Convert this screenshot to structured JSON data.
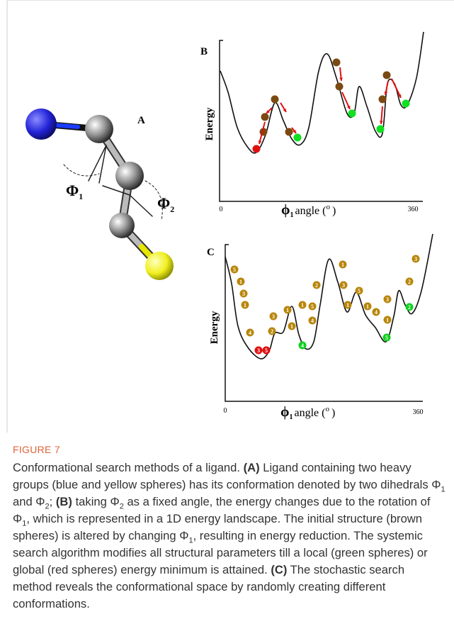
{
  "figure": {
    "panel_a": {
      "label": "A",
      "phi1": [
        "Φ",
        "1"
      ],
      "phi2": [
        "Φ",
        "2"
      ]
    },
    "panel_b": {
      "label": "B",
      "y_label": "Energy",
      "x_label": [
        "ϕ",
        "1",
        "angle (",
        "o",
        ")"
      ],
      "x_start": "0",
      "x_end": "360"
    },
    "panel_c": {
      "label": "C",
      "y_label": "Energy",
      "x_label": [
        "ϕ",
        "1",
        "angle (",
        "o",
        ")"
      ],
      "x_start": "0",
      "x_end": "360",
      "sphere_labels": [
        "5",
        "1",
        "3",
        "1",
        "4",
        "3",
        "5",
        "2",
        "3",
        "1",
        "1",
        "1",
        "5",
        "4",
        "4",
        "2",
        "1",
        "3",
        "1",
        "5",
        "1",
        "4",
        "3",
        "1",
        "5",
        "2",
        "2",
        "3"
      ]
    }
  },
  "caption": {
    "label": "FIGURE 7",
    "text": [
      "Conformational search methods of a ligand. ",
      "(A)",
      " Ligand containing two heavy groups (blue and yellow spheres) has its conformation denoted by two dihedrals Φ",
      "1",
      " and Φ",
      "2",
      "; ",
      "(B)",
      " taking Φ",
      "2",
      " as a fixed angle, the energy changes due to the rotation of Φ",
      "1",
      ", which is represented in a 1D energy landscape. The initial structure (brown spheres) is altered by changing Φ",
      "1",
      ", resulting in energy reduction. The systemic search algorithm modifies all structural parameters till a local (green spheres) or global (red spheres) energy minimum is attained. ",
      "(C)",
      " The stochastic search method reveals the conformational space by randomly creating different conformations."
    ]
  }
}
